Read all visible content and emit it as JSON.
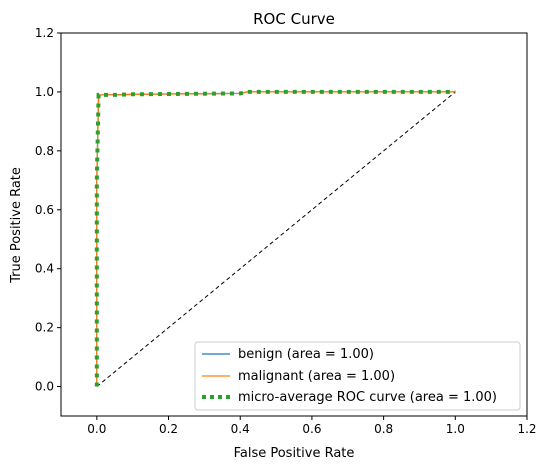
{
  "chart_data": {
    "type": "line",
    "title": "ROC Curve",
    "xlabel": "False Positive Rate",
    "ylabel": "True Positive Rate",
    "xlim": [
      -0.1,
      1.2
    ],
    "ylim": [
      -0.1,
      1.2
    ],
    "xticks": [
      0.0,
      0.2,
      0.4,
      0.6,
      0.8,
      1.0,
      1.2
    ],
    "yticks": [
      0.0,
      0.2,
      0.4,
      0.6,
      0.8,
      1.0,
      1.2
    ],
    "xtick_labels": [
      "0.0",
      "0.2",
      "0.4",
      "0.6",
      "0.8",
      "1.0",
      "1.2"
    ],
    "ytick_labels": [
      "0.0",
      "0.2",
      "0.4",
      "0.6",
      "0.8",
      "1.0",
      "1.2"
    ],
    "grid": false,
    "legend_position": "lower-right",
    "series": [
      {
        "name": "benign (area = 1.00)",
        "color": "#1f77b4",
        "style": "solid",
        "x": [
          0.0,
          0.0,
          0.005,
          0.01,
          0.05,
          0.1,
          0.2,
          0.3,
          0.4,
          0.42,
          0.6,
          0.8,
          1.0
        ],
        "y": [
          0.0,
          0.7,
          0.99,
          0.99,
          0.99,
          0.992,
          0.993,
          0.994,
          0.995,
          1.0,
          1.0,
          1.0,
          1.0
        ]
      },
      {
        "name": "malignant (area = 1.00)",
        "color": "#ff7f0e",
        "style": "solid",
        "x": [
          0.0,
          0.0,
          0.005,
          0.01,
          0.05,
          0.1,
          0.2,
          0.3,
          0.4,
          0.42,
          0.6,
          0.8,
          1.0
        ],
        "y": [
          0.0,
          0.7,
          0.99,
          0.99,
          0.99,
          0.992,
          0.993,
          0.994,
          0.995,
          1.0,
          1.0,
          1.0,
          1.0
        ]
      },
      {
        "name": "micro-average ROC curve (area = 1.00)",
        "color": "#2ca02c",
        "style": "dotted",
        "x": [
          0.0,
          0.0,
          0.005,
          0.01,
          0.05,
          0.1,
          0.2,
          0.3,
          0.4,
          0.42,
          0.6,
          0.8,
          1.0
        ],
        "y": [
          0.0,
          0.7,
          0.99,
          0.99,
          0.99,
          0.992,
          0.993,
          0.994,
          0.995,
          1.0,
          1.0,
          1.0,
          1.0
        ]
      }
    ],
    "reference_line": {
      "color": "#000000",
      "style": "dashed",
      "x": [
        0.0,
        1.0
      ],
      "y": [
        0.0,
        1.0
      ]
    }
  }
}
